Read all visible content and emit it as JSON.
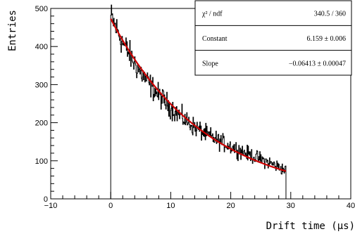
{
  "chart_data": {
    "type": "line",
    "title": "",
    "xlabel": "Drift time (µs)",
    "ylabel": "Entries",
    "xlim": [
      -10,
      40
    ],
    "ylim": [
      0,
      500
    ],
    "x_ticks": [
      "−10",
      "0",
      "10",
      "20",
      "30",
      "40"
    ],
    "y_ticks": [
      "0",
      "100",
      "200",
      "300",
      "400",
      "500"
    ],
    "grid": false,
    "histogram": {
      "name": "histogram",
      "color": "#000000",
      "x_range": [
        0,
        29.2
      ],
      "points": [
        [
          0,
          480
        ],
        [
          2,
          410
        ],
        [
          4,
          355
        ],
        [
          6,
          310
        ],
        [
          8,
          272
        ],
        [
          10,
          240
        ],
        [
          12,
          212
        ],
        [
          14,
          188
        ],
        [
          16,
          169
        ],
        [
          18,
          152
        ],
        [
          20,
          138
        ],
        [
          22,
          124
        ],
        [
          24,
          110
        ],
        [
          26,
          98
        ],
        [
          28,
          84
        ],
        [
          29.2,
          74
        ]
      ]
    },
    "fit": {
      "name": "exponential fit",
      "color": "#cc0000",
      "function": "exp(Constant + Slope*x)",
      "constant": 6.159,
      "slope": -0.06413,
      "x_range": [
        0,
        29.2
      ]
    },
    "stats_box": {
      "position": "top-right",
      "rows": [
        {
          "label": "χ² / ndf",
          "value": "340.5 / 360"
        },
        {
          "label": "Constant",
          "value": "6.159 ± 0.006"
        },
        {
          "label": "Slope",
          "value": "−0.06413 ± 0.00047"
        }
      ]
    }
  }
}
